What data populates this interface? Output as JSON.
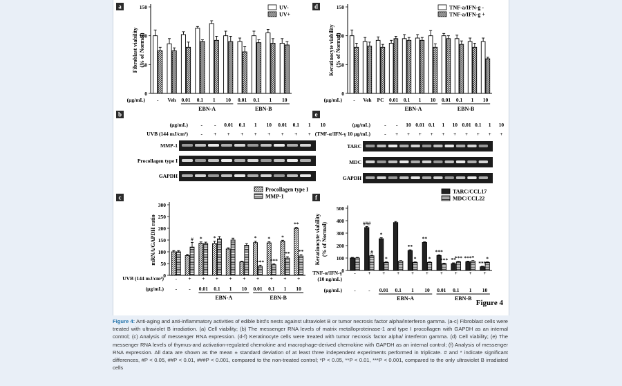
{
  "figure_label": "Figure 4",
  "panels": {
    "a": {
      "letter": "a",
      "ylabel1": "Fibroblast viability",
      "ylabel2": "(% of Normal)"
    },
    "b": {
      "letter": "b"
    },
    "c": {
      "letter": "c",
      "ylabel": "mRNA/GAPDH ratio"
    },
    "d": {
      "letter": "d",
      "ylabel1": "Keratinocyte viability",
      "ylabel2": "(% of Normal)"
    },
    "e": {
      "letter": "e"
    },
    "f": {
      "letter": "f",
      "ylabel1": "Keratinocyte viability",
      "ylabel2": "(% of Normal)"
    }
  },
  "gels": {
    "b": {
      "rows": [
        {
          "label": "(μg/mL)",
          "cells": [
            "-",
            "-",
            "0.01",
            "0.1",
            "1",
            "10",
            "0.01",
            "0.1",
            "1",
            "10"
          ]
        },
        {
          "label": "UVB (144 mJ/cm²)",
          "cells": [
            "-",
            "+",
            "+",
            "+",
            "+",
            "+",
            "+",
            "+",
            "+",
            "+"
          ]
        }
      ],
      "bands": [
        "MMP-1",
        "Procollagen type I",
        "GAPDH"
      ]
    },
    "e": {
      "rows": [
        {
          "label": "(μg/mL)",
          "cells": [
            "-",
            "-",
            "10",
            "0.01",
            "0.1",
            "1",
            "10",
            "0.01",
            "0.1",
            "1",
            "10"
          ]
        },
        {
          "label": "(TNF-α/IFN-γ 10 μg/mL)",
          "cells": [
            "-",
            "+",
            "+",
            "+",
            "+",
            "+",
            "+",
            "+",
            "+",
            "+",
            "+"
          ]
        }
      ],
      "bands": [
        "TARC",
        "MDC",
        "GAPDH"
      ]
    }
  },
  "chart_data": [
    {
      "panel": "a",
      "type": "bar",
      "categories": [
        "-",
        "Veh",
        "0.01",
        "0.1",
        "1",
        "10",
        "0.01",
        "0.1",
        "1",
        "10"
      ],
      "unit_label": "(μg/mL)",
      "groups": [
        {
          "label": "EBN-A",
          "from": 2,
          "to": 5
        },
        {
          "label": "EBN-B",
          "from": 6,
          "to": 9
        }
      ],
      "series": [
        {
          "name": "UV-",
          "values": [
            100,
            86,
            102,
            113,
            121,
            100,
            90,
            100,
            105,
            87
          ],
          "errors": [
            10,
            9,
            5,
            3,
            5,
            8,
            6,
            8,
            6,
            8
          ]
        },
        {
          "name": "UV+",
          "values": [
            74,
            74,
            80,
            90,
            92,
            90,
            72,
            88,
            87,
            84
          ],
          "errors": [
            6,
            5,
            9,
            3,
            7,
            9,
            9,
            5,
            8,
            6
          ]
        }
      ],
      "yticks": [
        0,
        50,
        100,
        150
      ],
      "ylim": [
        0,
        150
      ]
    },
    {
      "panel": "d",
      "type": "bar",
      "categories": [
        "-",
        "Veh",
        "PC",
        "0.01",
        "0.1",
        "1",
        "10",
        "0.01",
        "0.1",
        "1",
        "10"
      ],
      "unit_label": "(μg/mL)",
      "groups": [
        {
          "label": "EBN-A",
          "from": 3,
          "to": 6
        },
        {
          "label": "EBN-B",
          "from": 7,
          "to": 10
        }
      ],
      "series": [
        {
          "name": "TNF-a/IFN-g -",
          "values": [
            100,
            90,
            92,
            87,
            95,
            96,
            100,
            100,
            95,
            90,
            90
          ],
          "errors": [
            10,
            7,
            6,
            5,
            7,
            6,
            9,
            4,
            6,
            6,
            6
          ]
        },
        {
          "name": "TNF-a/IFN-g +",
          "values": [
            80,
            82,
            80,
            95,
            92,
            92,
            80,
            95,
            85,
            80,
            60
          ],
          "errors": [
            7,
            7,
            5,
            4,
            5,
            5,
            6,
            5,
            6,
            7,
            3
          ]
        }
      ],
      "yticks": [
        0,
        50,
        100,
        150
      ],
      "ylim": [
        0,
        150
      ]
    },
    {
      "panel": "c",
      "type": "bar",
      "categories": [
        "-",
        "+",
        "0.01",
        "0.1",
        "1",
        "10",
        "0.01",
        "0.1",
        "1",
        "10"
      ],
      "row_labels": [
        "UVB (144 mJ/cm²)",
        "(μg/mL)"
      ],
      "top_row": [
        "-",
        "+",
        "+",
        "+",
        "+",
        "+",
        "+",
        "+",
        "+",
        "+"
      ],
      "bottom_row": [
        "-",
        "-",
        "0.01",
        "0.1",
        "1",
        "10",
        "0.01",
        "0.1",
        "1",
        "10"
      ],
      "groups": [
        {
          "label": "EBN-A",
          "from": 2,
          "to": 5
        },
        {
          "label": "EBN-B",
          "from": 6,
          "to": 9
        }
      ],
      "series": [
        {
          "name": "Procollagen type I",
          "values": [
            100,
            84,
            136,
            135,
            112,
            57,
            139,
            138,
            145,
            200
          ],
          "errors": [
            5,
            5,
            6,
            10,
            5,
            3,
            6,
            5,
            4,
            4
          ]
        },
        {
          "name": "MMP-1",
          "values": [
            100,
            120,
            135,
            155,
            150,
            128,
            38,
            45,
            73,
            82
          ],
          "errors": [
            5,
            20,
            6,
            10,
            8,
            7,
            5,
            4,
            6,
            6
          ]
        }
      ],
      "annotations": [
        {
          "i": 1,
          "s": 1,
          "t": "#"
        },
        {
          "i": 2,
          "s": 0,
          "t": "*"
        },
        {
          "i": 3,
          "s": 0,
          "t": "*"
        },
        {
          "i": 6,
          "s": 0,
          "t": "*"
        },
        {
          "i": 6,
          "s": 1,
          "t": "***"
        },
        {
          "i": 7,
          "s": 0,
          "t": "*"
        },
        {
          "i": 7,
          "s": 1,
          "t": "***"
        },
        {
          "i": 8,
          "s": 0,
          "t": "*"
        },
        {
          "i": 8,
          "s": 1,
          "t": "**"
        },
        {
          "i": 9,
          "s": 0,
          "t": "**"
        },
        {
          "i": 9,
          "s": 1,
          "t": "**"
        }
      ],
      "yticks": [
        0,
        50,
        100,
        150,
        200,
        250,
        300
      ],
      "ylim": [
        0,
        300
      ]
    },
    {
      "panel": "f",
      "type": "bar",
      "categories": [
        "-",
        "+",
        "0.01",
        "0.1",
        "1",
        "10",
        "0.01",
        "0.1",
        "1",
        "10"
      ],
      "row_labels": [
        "TNF-α/IFN-γ",
        "(10 ng/mL)",
        "(μg/mL)"
      ],
      "top_row": [
        "-",
        "+",
        "+",
        "+",
        "+",
        "+",
        "+",
        "+",
        "+",
        "+"
      ],
      "bottom_row": [
        "-",
        "-",
        "0.01",
        "0.1",
        "1",
        "10",
        "0.01",
        "0.1",
        "1",
        "10"
      ],
      "groups": [
        {
          "label": "EBN-A",
          "from": 2,
          "to": 5
        },
        {
          "label": "EBN-B",
          "from": 6,
          "to": 9
        }
      ],
      "series": [
        {
          "name": "TARC/CCL17",
          "values": [
            100,
            345,
            255,
            385,
            160,
            225,
            120,
            55,
            70,
            30
          ],
          "errors": [
            5,
            8,
            8,
            8,
            6,
            5,
            6,
            6,
            5,
            4
          ]
        },
        {
          "name": "MDC/CCL22",
          "values": [
            100,
            118,
            65,
            75,
            65,
            65,
            55,
            70,
            75,
            65
          ],
          "errors": [
            5,
            5,
            4,
            4,
            4,
            4,
            4,
            4,
            4,
            4
          ]
        }
      ],
      "annotations": [
        {
          "i": 1,
          "s": 0,
          "t": "###"
        },
        {
          "i": 1,
          "s": 1,
          "t": "#"
        },
        {
          "i": 2,
          "s": 0,
          "t": "*"
        },
        {
          "i": 2,
          "s": 1,
          "t": "*"
        },
        {
          "i": 4,
          "s": 0,
          "t": "**"
        },
        {
          "i": 4,
          "s": 1,
          "t": "*"
        },
        {
          "i": 5,
          "s": 0,
          "t": "**"
        },
        {
          "i": 5,
          "s": 1,
          "t": "*"
        },
        {
          "i": 6,
          "s": 0,
          "t": "***"
        },
        {
          "i": 6,
          "s": 1,
          "t": "***"
        },
        {
          "i": 7,
          "s": 0,
          "t": "**"
        },
        {
          "i": 7,
          "s": 1,
          "t": "***"
        },
        {
          "i": 8,
          "s": 0,
          "t": "***"
        },
        {
          "i": 8,
          "s": 1,
          "t": "*"
        },
        {
          "i": 9,
          "s": 0,
          "t": "***"
        },
        {
          "i": 9,
          "s": 1,
          "t": "*"
        }
      ],
      "yticks": [
        0,
        100,
        200,
        300,
        400,
        500
      ],
      "ylim": [
        0,
        500
      ]
    }
  ],
  "caption": {
    "label": "Figure 4:",
    "text": "Anti-aging and anti-inflammatory activities of edible bird's nests against ultraviolet B or tumor necrosis factor alpha/interferon gamma. (a-c) Fibroblast cells were treated with ultraviolet B irradiation. (a) Cell viability; (b) The messenger RNA levels of matrix metalloproteinase-1 and type I procollagen with GAPDH as an internal control; (c) Analysis of messenger RNA expression. (d-f) Keratinocyte cells were treated with tumor necrosis factor alpha/ interferon gamma. (d) Cell viability; (e) The messenger RNA levels of thymus-and activation-regulated chemokine and macrophage-derived chemokine with GAPDH as an internal control; (f) Analysis of messenger RNA expression. All data are shown as the mean ± standard deviation of at least three independent experiments performed in triplicate. # and * indicate significant differences, #P < 0.05, ##P < 0.01, ###P < 0.001, compared to the non-treated control; *P < 0.05, **P < 0.01, ***P < 0.001, compared to the only ultraviolet B irradiated cells"
  }
}
